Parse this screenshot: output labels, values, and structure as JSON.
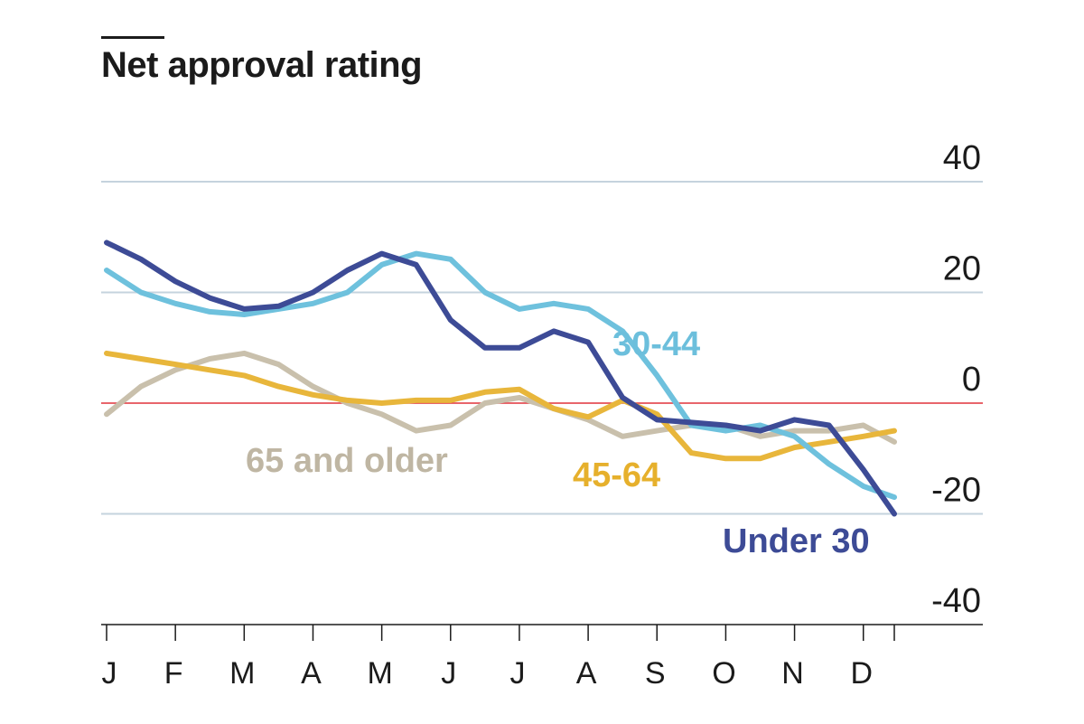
{
  "chart_data": {
    "type": "line",
    "title": "Net approval rating",
    "ylim": [
      -40,
      40
    ],
    "yticks": [
      40,
      20,
      0,
      -20,
      -40
    ],
    "ytick_labels": [
      "40",
      "20",
      "0",
      "-20",
      "-40"
    ],
    "months": [
      "J",
      "F",
      "M",
      "A",
      "M",
      "J",
      "J",
      "A",
      "S",
      "O",
      "N",
      "D"
    ],
    "x_range": [
      0,
      11.45
    ],
    "grid": true,
    "zero_line_color": "#e0323a",
    "grid_color": "#c5d3de",
    "series": [
      {
        "name": "65 and older",
        "color": "#c9c0ac",
        "label_color": "#bfb6a3",
        "points": [
          [
            0,
            -2
          ],
          [
            0.5,
            3
          ],
          [
            1,
            6
          ],
          [
            1.5,
            8
          ],
          [
            2,
            9
          ],
          [
            2.5,
            7
          ],
          [
            3,
            3
          ],
          [
            3.5,
            0
          ],
          [
            4,
            -2
          ],
          [
            4.5,
            -5
          ],
          [
            5,
            -4
          ],
          [
            5.5,
            0
          ],
          [
            6,
            1
          ],
          [
            6.5,
            -1
          ],
          [
            7,
            -3
          ],
          [
            7.5,
            -6
          ],
          [
            8,
            -5
          ],
          [
            8.5,
            -4
          ],
          [
            9,
            -4
          ],
          [
            9.5,
            -6
          ],
          [
            10,
            -5
          ],
          [
            10.5,
            -5
          ],
          [
            11,
            -4
          ],
          [
            11.45,
            -7
          ]
        ]
      },
      {
        "name": "45-64",
        "color": "#e8b63b",
        "label_color": "#e6b02c",
        "points": [
          [
            0,
            9
          ],
          [
            0.5,
            8
          ],
          [
            1,
            7
          ],
          [
            1.5,
            6
          ],
          [
            2,
            5
          ],
          [
            2.5,
            3
          ],
          [
            3,
            1.5
          ],
          [
            3.5,
            0.5
          ],
          [
            4,
            0
          ],
          [
            4.5,
            0.5
          ],
          [
            5,
            0.5
          ],
          [
            5.5,
            2
          ],
          [
            6,
            2.5
          ],
          [
            6.5,
            -1
          ],
          [
            7,
            -2.5
          ],
          [
            7.5,
            0.5
          ],
          [
            8,
            -2
          ],
          [
            8.5,
            -9
          ],
          [
            9,
            -10
          ],
          [
            9.5,
            -10
          ],
          [
            10,
            -8
          ],
          [
            10.5,
            -7
          ],
          [
            11,
            -6
          ],
          [
            11.45,
            -5
          ]
        ]
      },
      {
        "name": "30-44",
        "color": "#6ec1dd",
        "label_color": "#6cbfdc",
        "points": [
          [
            0,
            24
          ],
          [
            0.5,
            20
          ],
          [
            1,
            18
          ],
          [
            1.5,
            16.5
          ],
          [
            2,
            16
          ],
          [
            2.5,
            17
          ],
          [
            3,
            18
          ],
          [
            3.5,
            20
          ],
          [
            4,
            25
          ],
          [
            4.5,
            27
          ],
          [
            5,
            26
          ],
          [
            5.5,
            20
          ],
          [
            6,
            17
          ],
          [
            6.5,
            18
          ],
          [
            7,
            17
          ],
          [
            7.5,
            13
          ],
          [
            8,
            5
          ],
          [
            8.5,
            -4
          ],
          [
            9,
            -5
          ],
          [
            9.5,
            -4
          ],
          [
            10,
            -6
          ],
          [
            10.5,
            -11
          ],
          [
            11,
            -15
          ],
          [
            11.45,
            -17
          ]
        ]
      },
      {
        "name": "Under 30",
        "color": "#3d4b96",
        "label_color": "#3d4b96",
        "points": [
          [
            0,
            29
          ],
          [
            0.5,
            26
          ],
          [
            1,
            22
          ],
          [
            1.5,
            19
          ],
          [
            2,
            17
          ],
          [
            2.5,
            17.5
          ],
          [
            3,
            20
          ],
          [
            3.5,
            24
          ],
          [
            4,
            27
          ],
          [
            4.5,
            25
          ],
          [
            5,
            15
          ],
          [
            5.5,
            10
          ],
          [
            6,
            10
          ],
          [
            6.5,
            13
          ],
          [
            7,
            11
          ],
          [
            7.5,
            1
          ],
          [
            8,
            -3
          ],
          [
            8.5,
            -3.5
          ],
          [
            9,
            -4
          ],
          [
            9.5,
            -5
          ],
          [
            10,
            -3
          ],
          [
            10.5,
            -4
          ],
          [
            11,
            -12
          ],
          [
            11.45,
            -20
          ]
        ]
      }
    ]
  }
}
